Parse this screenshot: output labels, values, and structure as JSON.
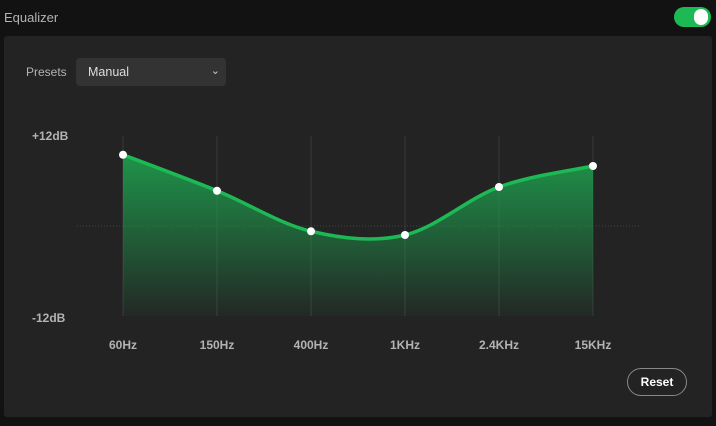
{
  "header": {
    "title": "Equalizer",
    "enabled": true
  },
  "presets": {
    "label": "Presets",
    "selected": "Manual"
  },
  "reset_label": "Reset",
  "colors": {
    "accent": "#1db954",
    "background": "#121212",
    "panel": "#232323"
  },
  "chart_data": {
    "type": "area",
    "categories": [
      "60Hz",
      "150Hz",
      "400Hz",
      "1KHz",
      "2.4KHz",
      "15KHz"
    ],
    "values": [
      9.5,
      4.7,
      -0.7,
      -1.2,
      5.2,
      8.0
    ],
    "ylim": [
      -12,
      12
    ],
    "ytick_labels": [
      "+12dB",
      "-12dB"
    ],
    "grid": true
  }
}
